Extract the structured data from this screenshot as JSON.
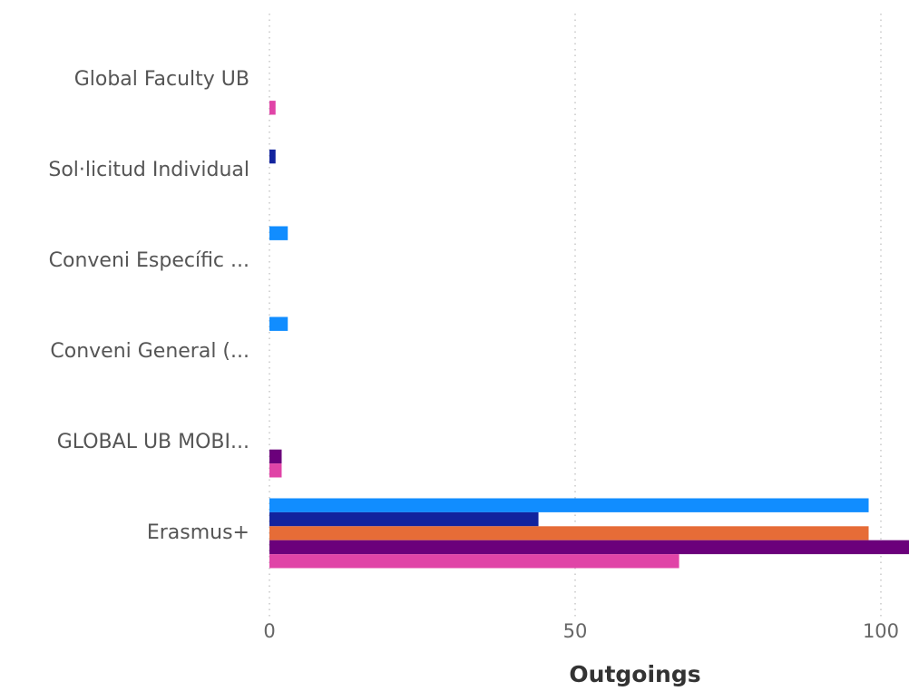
{
  "chart_data": {
    "type": "hbar",
    "categories": [
      "Global Faculty UB",
      "Sol·licitud Individual",
      "Conveni Específic ...",
      "Conveni General (...",
      "GLOBAL UB MOBI...",
      "Erasmus+"
    ],
    "series": [
      {
        "color": "#118DFF",
        "values": [
          null,
          null,
          3,
          3,
          null,
          98
        ]
      },
      {
        "color": "#12239E",
        "values": [
          null,
          1,
          null,
          null,
          null,
          44
        ]
      },
      {
        "color": "#E66C37",
        "values": [
          null,
          null,
          null,
          null,
          null,
          98
        ]
      },
      {
        "color": "#6B007B",
        "values": [
          null,
          null,
          null,
          null,
          2,
          105
        ]
      },
      {
        "color": "#E044A7",
        "values": [
          1,
          null,
          null,
          null,
          2,
          67
        ]
      }
    ],
    "x_label": "Outgoings",
    "xlim": [
      0,
      104.6
    ],
    "xticks": [
      0,
      50,
      100
    ],
    "grid": true
  }
}
